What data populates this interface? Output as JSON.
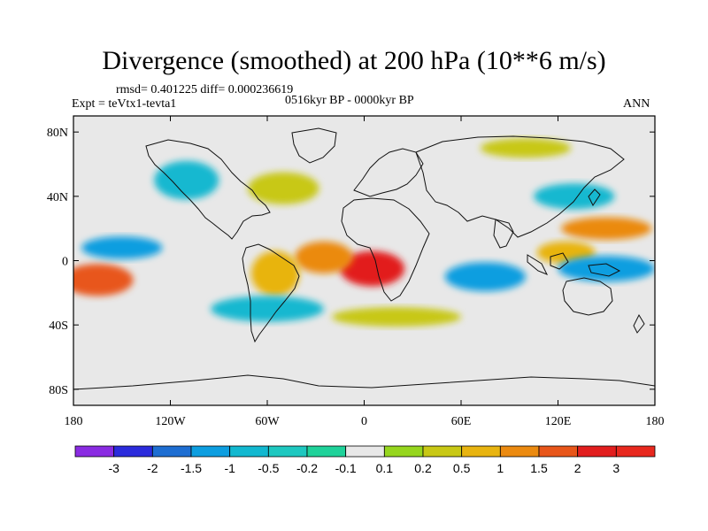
{
  "header": {
    "title": "Divergence (smoothed) at 200 hPa (10**6 m/s)",
    "stats": "rmsd= 0.401225 diff= 0.000236619",
    "experiment": "Expt = teVtx1-tevta1",
    "period": "0516kyr BP - 0000kyr BP",
    "season": "ANN"
  },
  "map": {
    "projection": "cylindrical equidistant",
    "lon_range": [
      -180,
      180
    ],
    "lat_range": [
      -90,
      90
    ],
    "x_ticks": [
      {
        "lon": -180,
        "label": "180"
      },
      {
        "lon": -120,
        "label": "120W"
      },
      {
        "lon": -60,
        "label": "60W"
      },
      {
        "lon": 0,
        "label": "0"
      },
      {
        "lon": 60,
        "label": "60E"
      },
      {
        "lon": 120,
        "label": "120E"
      },
      {
        "lon": 180,
        "label": "180"
      }
    ],
    "y_ticks": [
      {
        "lat": 80,
        "label": "80N"
      },
      {
        "lat": 40,
        "label": "40N"
      },
      {
        "lat": 0,
        "label": "0"
      },
      {
        "lat": -40,
        "label": "40S"
      },
      {
        "lat": -80,
        "label": "80S"
      }
    ],
    "anomaly_regions": [
      {
        "name": "central-pacific-positive",
        "lon": -165,
        "lat": -12,
        "rx": 22,
        "ry": 10,
        "value": 2.0
      },
      {
        "name": "central-pacific-negative",
        "lon": -150,
        "lat": 8,
        "rx": 25,
        "ry": 7,
        "value": -1.0
      },
      {
        "name": "equatorial-africa-positive",
        "lon": 5,
        "lat": -5,
        "rx": 20,
        "ry": 11,
        "value": 2.5
      },
      {
        "name": "equatorial-atlantic-positive",
        "lon": -25,
        "lat": 2,
        "rx": 18,
        "ry": 10,
        "value": 1.2
      },
      {
        "name": "south-america-positive",
        "lon": -55,
        "lat": -8,
        "rx": 15,
        "ry": 14,
        "value": 0.8
      },
      {
        "name": "indian-ocean-negative",
        "lon": 75,
        "lat": -10,
        "rx": 25,
        "ry": 9,
        "value": -1.0
      },
      {
        "name": "maritime-continent-positive",
        "lon": 125,
        "lat": 5,
        "rx": 18,
        "ry": 7,
        "value": 1.0
      },
      {
        "name": "west-pacific-positive",
        "lon": 150,
        "lat": 20,
        "rx": 28,
        "ry": 7,
        "value": 1.2
      },
      {
        "name": "west-pacific-negative",
        "lon": 150,
        "lat": -5,
        "rx": 30,
        "ry": 8,
        "value": -1.0
      },
      {
        "name": "north-atlantic-positive",
        "lon": -50,
        "lat": 45,
        "rx": 22,
        "ry": 10,
        "value": 0.5
      },
      {
        "name": "siberia-positive",
        "lon": 100,
        "lat": 70,
        "rx": 28,
        "ry": 6,
        "value": 0.3
      },
      {
        "name": "north-america-negative",
        "lon": -110,
        "lat": 50,
        "rx": 20,
        "ry": 12,
        "value": -0.5
      },
      {
        "name": "southern-ocean-negative",
        "lon": -60,
        "lat": -30,
        "rx": 35,
        "ry": 8,
        "value": -0.5
      },
      {
        "name": "south-atlantic-positive",
        "lon": 20,
        "lat": -35,
        "rx": 40,
        "ry": 6,
        "value": 0.5
      },
      {
        "name": "east-asia-negative",
        "lon": 130,
        "lat": 40,
        "rx": 25,
        "ry": 8,
        "value": -0.5
      }
    ]
  },
  "colorbar": {
    "levels": [
      "-3",
      "-2",
      "-1.5",
      "-1",
      "-0.5",
      "-0.2",
      "-0.1",
      "0.1",
      "0.2",
      "0.5",
      "1",
      "1.5",
      "2",
      "3"
    ],
    "colors": [
      "#8a2be2",
      "#2b2bdc",
      "#1e6ed2",
      "#0d9ee0",
      "#12b8d0",
      "#1ec8c0",
      "#1fd29a",
      "#e8e8e8",
      "#96d61e",
      "#c8c815",
      "#e8b410",
      "#eb8a10",
      "#e8561a",
      "#e21e1e",
      "#e8281e"
    ]
  }
}
